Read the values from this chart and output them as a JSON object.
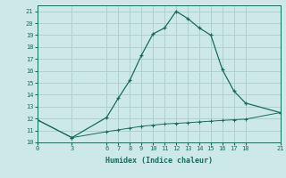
{
  "xlabel": "Humidex (Indice chaleur)",
  "line1_x": [
    0,
    3,
    6,
    7,
    8,
    9,
    10,
    11,
    12,
    13,
    14,
    15,
    16,
    17,
    18,
    21
  ],
  "line1_y": [
    11.9,
    10.4,
    12.1,
    13.7,
    15.2,
    17.3,
    19.1,
    19.6,
    21.0,
    20.4,
    19.6,
    19.0,
    16.1,
    14.3,
    13.3,
    12.5
  ],
  "line2_x": [
    0,
    3,
    6,
    7,
    8,
    9,
    10,
    11,
    12,
    13,
    14,
    15,
    16,
    17,
    18,
    21
  ],
  "line2_y": [
    11.9,
    10.4,
    10.9,
    11.05,
    11.2,
    11.35,
    11.45,
    11.55,
    11.6,
    11.65,
    11.72,
    11.78,
    11.85,
    11.9,
    11.95,
    12.5
  ],
  "line_color": "#1a6b5e",
  "bg_color": "#cce8e8",
  "grid_color": "#aacccc",
  "xticks": [
    0,
    3,
    6,
    7,
    8,
    9,
    10,
    11,
    12,
    13,
    14,
    15,
    16,
    17,
    18,
    21
  ],
  "yticks": [
    10,
    11,
    12,
    13,
    14,
    15,
    16,
    17,
    18,
    19,
    20,
    21
  ],
  "xlim": [
    0,
    21
  ],
  "ylim": [
    10,
    21.5
  ]
}
